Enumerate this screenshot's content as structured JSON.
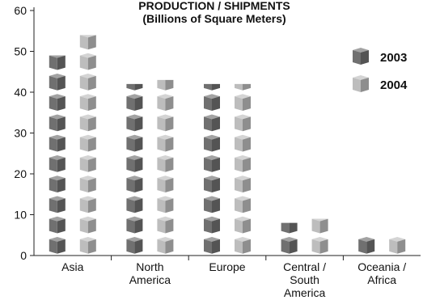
{
  "chart_data": {
    "type": "bar",
    "title": "PRODUCTION / SHIPMENTS",
    "subtitle": "(Billions of Square Meters)",
    "categories": [
      "Asia",
      "North\nAmerica",
      "Europe",
      "Central /\nSouth\nAmerica",
      "Oceania /\nAfrica"
    ],
    "series": [
      {
        "name": "2003",
        "values": [
          49,
          42,
          42,
          8,
          5
        ],
        "color": "#707070"
      },
      {
        "name": "2004",
        "values": [
          54,
          43,
          42,
          9,
          5
        ],
        "color": "#bdbdbd"
      }
    ],
    "ylim": [
      0,
      60
    ],
    "yticks": [
      0,
      10,
      20,
      30,
      40,
      50,
      60
    ],
    "legend": "right",
    "grid": false,
    "marker": "cube-icon",
    "unit_per_icon": 5
  }
}
